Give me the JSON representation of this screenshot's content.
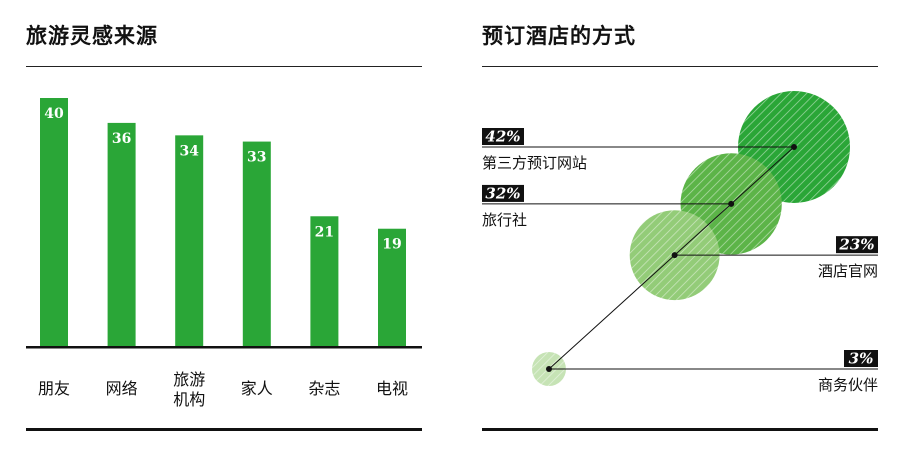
{
  "left": {
    "title": "旅游灵感来源"
  },
  "right": {
    "title": "预订酒店的方式"
  },
  "chart_data": [
    {
      "type": "bar",
      "title": "旅游灵感来源",
      "categories": [
        "朋友",
        "网络",
        "旅游\n机构",
        "家人",
        "杂志",
        "电视"
      ],
      "values": [
        40,
        36,
        34,
        33,
        21,
        19
      ],
      "color": "#2aa637"
    },
    {
      "type": "scatter",
      "title": "预订酒店的方式",
      "points": [
        {
          "label": "第三方预订网站",
          "value": 42,
          "pct": "42%",
          "color": "#2aa637"
        },
        {
          "label": "旅行社",
          "value": 32,
          "pct": "32%",
          "color": "#5cb448"
        },
        {
          "label": "酒店官网",
          "value": 23,
          "pct": "23%",
          "color": "#93cc78"
        },
        {
          "label": "商务伙伴",
          "value": 3,
          "pct": "3%",
          "color": "#c6e3b5"
        }
      ]
    }
  ]
}
